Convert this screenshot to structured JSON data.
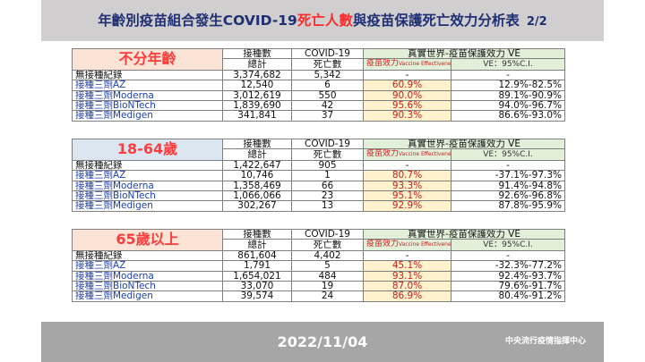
{
  "title": {
    "pre": "年齡別疫苗組合發生COVID-19",
    "highlight": "死亡人數",
    "post": "與疫苗保護死亡效力分析表",
    "page": "2/2"
  },
  "colors": {
    "header_bg": "#d0cece",
    "title": "#1f2f73",
    "accent_red": "#ff2a2a",
    "footer_bg": "#a6a6a6"
  },
  "col_headers": {
    "vaccinated": "接種數",
    "total": "總計",
    "covid": "COVID-19",
    "deaths": "死亡數",
    "ve_title": "真實世界-疫苗保護效力 VE",
    "ve_label": "疫苗效力",
    "ve_label_en": "Vaccine Effectiveness",
    "ci_label": "VE：95%C.I."
  },
  "groups": [
    {
      "name": "不分年齡",
      "rows": [
        {
          "label": "無接種紀錄",
          "total": "3,374,682",
          "deaths": "5,342",
          "ve": "-",
          "ci": "-"
        },
        {
          "label": "接種三劑AZ",
          "total": "12,540",
          "deaths": "6",
          "ve": "60.9%",
          "ci": "12.9%-82.5%"
        },
        {
          "label": "接種三劑Moderna",
          "total": "3,012,619",
          "deaths": "550",
          "ve": "90.0%",
          "ci": "89.1%-90.9%"
        },
        {
          "label": "接種三劑BioNTech",
          "total": "1,839,690",
          "deaths": "42",
          "ve": "95.6%",
          "ci": "94.0%-96.7%"
        },
        {
          "label": "接種三劑Medigen",
          "total": "341,841",
          "deaths": "37",
          "ve": "90.3%",
          "ci": "86.6%-93.0%"
        }
      ]
    },
    {
      "name": "18-64歲",
      "rows": [
        {
          "label": "無接種紀錄",
          "total": "1,422,647",
          "deaths": "905",
          "ve": "-",
          "ci": "-"
        },
        {
          "label": "接種三劑AZ",
          "total": "10,746",
          "deaths": "1",
          "ve": "80.7%",
          "ci": "-37.1%-97.3%"
        },
        {
          "label": "接種三劑Moderna",
          "total": "1,358,469",
          "deaths": "66",
          "ve": "93.3%",
          "ci": "91.4%-94.8%"
        },
        {
          "label": "接種三劑BioNTech",
          "total": "1,066,066",
          "deaths": "23",
          "ve": "95.1%",
          "ci": "92.6%-96.8%"
        },
        {
          "label": "接種三劑Medigen",
          "total": "302,267",
          "deaths": "13",
          "ve": "92.9%",
          "ci": "87.8%-95.9%"
        }
      ]
    },
    {
      "name": "65歲以上",
      "rows": [
        {
          "label": "無接種紀錄",
          "total": "861,604",
          "deaths": "4,402",
          "ve": "-",
          "ci": "-"
        },
        {
          "label": "接種三劑AZ",
          "total": "1,791",
          "deaths": "5",
          "ve": "45.1%",
          "ci": "-32.3%-77.2%"
        },
        {
          "label": "接種三劑Moderna",
          "total": "1,654,021",
          "deaths": "484",
          "ve": "93.1%",
          "ci": "92.4%-93.7%"
        },
        {
          "label": "接種三劑BioNTech",
          "total": "33,070",
          "deaths": "19",
          "ve": "87.0%",
          "ci": "79.6%-91.7%"
        },
        {
          "label": "接種三劑Medigen",
          "total": "39,574",
          "deaths": "24",
          "ve": "86.9%",
          "ci": "80.4%-91.2%"
        }
      ]
    }
  ],
  "footer": {
    "date": "2022/11/04",
    "org": "中央流行疫情指揮中心"
  }
}
